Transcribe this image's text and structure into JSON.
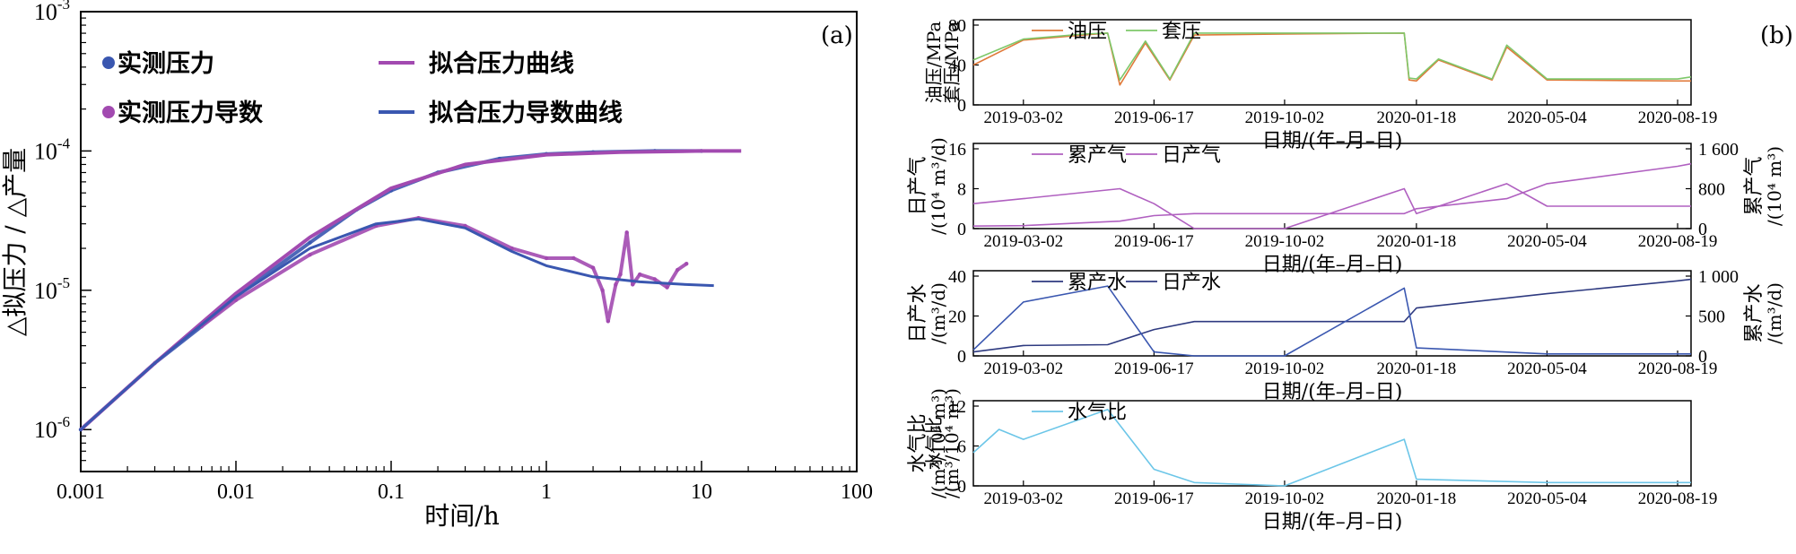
{
  "panel_a": {
    "label": "(a)",
    "xlabel": "时间/h",
    "ylabel": "△拟压力 / △产量",
    "x_ticks": [
      "0.001",
      "0.01",
      "0.1",
      "1",
      "10",
      "100"
    ],
    "y_ticks": [
      {
        "base": "10",
        "exp": "-6"
      },
      {
        "base": "10",
        "exp": "-5"
      },
      {
        "base": "10",
        "exp": "-4"
      },
      {
        "base": "10",
        "exp": "-3"
      }
    ],
    "legend": {
      "measured_pressure": "实测压力",
      "measured_derivative": "实测压力导数",
      "fit_pressure": "拟合压力曲线",
      "fit_derivative": "拟合压力导数曲线"
    }
  },
  "panel_b": {
    "label": "(b)",
    "date_ticks": [
      "2019-03-02",
      "2019-06-17",
      "2019-10-02",
      "2020-01-18",
      "2020-05-04",
      "2020-08-19"
    ],
    "xlabel": "日期/(年–月–日)",
    "sub1": {
      "ylabel1": "油压/MPa",
      "ylabel2": "套压/MPa",
      "ticks": [
        "0",
        "40",
        "80"
      ],
      "legend": [
        "油压",
        "套压"
      ]
    },
    "sub2": {
      "ylabel_left1": "日产气",
      "ylabel_left2": "/(10⁴ m³/d)",
      "ylabel_right1": "累产气",
      "ylabel_right2": "/(10⁴ m³)",
      "ticks_left": [
        "0",
        "8",
        "16"
      ],
      "ticks_right": [
        "0",
        "800",
        "1 600"
      ],
      "legend": [
        "累产气",
        "日产气"
      ]
    },
    "sub3": {
      "ylabel_left1": "日产水",
      "ylabel_left2": "/(m³/d)",
      "ylabel_right1": "累产水",
      "ylabel_right2": "/(m³/d)",
      "ticks_left": [
        "0",
        "20",
        "40"
      ],
      "ticks_right": [
        "0",
        "500",
        "1 000"
      ],
      "legend": [
        "累产水",
        "日产水"
      ]
    },
    "sub4": {
      "ylabel1": "水气比",
      "ylabel2": "/(m³/10⁴ m³)",
      "ticks": [
        "0",
        "6",
        "12"
      ],
      "legend": [
        "水气比"
      ]
    }
  },
  "colors": {
    "purple": "#a24ab0",
    "blue": "#3a57b0",
    "orange": "#e07a3a",
    "green": "#7ec86a",
    "violet": "#b060c0",
    "navy": "#2e3a80",
    "lightblue": "#6cc6e8"
  },
  "chart_data": [
    {
      "type": "scatter",
      "x_scale": "log",
      "y_scale": "log",
      "xlim": [
        0.001,
        100
      ],
      "ylim": [
        5e-07,
        0.001
      ],
      "series": [
        {
          "name": "实测压力",
          "x": [
            0.001,
            0.003,
            0.006,
            0.01,
            0.03,
            0.06,
            0.1,
            0.2,
            0.5,
            1,
            2,
            5,
            10
          ],
          "y": [
            1e-06,
            3e-06,
            5.5e-06,
            9e-06,
            2.2e-05,
            3.8e-05,
            5.2e-05,
            7e-05,
            8.8e-05,
            9.5e-05,
            9.8e-05,
            0.0001,
            0.0001
          ]
        },
        {
          "name": "实测压力导数",
          "x": [
            0.006,
            0.01,
            0.03,
            0.08,
            0.15,
            0.3,
            0.6,
            1,
            1.5,
            2,
            2.3,
            2.5,
            2.8,
            3.0,
            3.3,
            3.6,
            4.0,
            5.0,
            6.0,
            7.0,
            8.0
          ],
          "y": [
            5.5e-06,
            8.5e-06,
            1.8e-05,
            2.9e-05,
            3.3e-05,
            2.9e-05,
            2e-05,
            1.7e-05,
            1.7e-05,
            1.45e-05,
            1e-05,
            6e-06,
            1.1e-05,
            1.3e-05,
            2.6e-05,
            1.1e-05,
            1.3e-05,
            1.2e-05,
            1.05e-05,
            1.4e-05,
            1.55e-05
          ]
        },
        {
          "name": "拟合压力曲线",
          "x": [
            0.001,
            0.003,
            0.01,
            0.03,
            0.1,
            0.3,
            1,
            3,
            10,
            18
          ],
          "y": [
            1e-06,
            3e-06,
            9.5e-06,
            2.4e-05,
            5.4e-05,
            8e-05,
            9.4e-05,
            9.8e-05,
            0.0001,
            0.0001
          ]
        },
        {
          "name": "拟合压力导数曲线",
          "x": [
            0.001,
            0.003,
            0.01,
            0.03,
            0.08,
            0.15,
            0.3,
            0.6,
            1,
            2,
            4,
            8,
            12
          ],
          "y": [
            1e-06,
            3e-06,
            9e-06,
            2e-05,
            3e-05,
            3.25e-05,
            2.8e-05,
            1.9e-05,
            1.5e-05,
            1.25e-05,
            1.15e-05,
            1.1e-05,
            1.08e-05
          ]
        }
      ]
    },
    {
      "type": "line",
      "x": [
        "2019-01-20",
        "2019-03-02",
        "2019-04-20",
        "2019-05-10",
        "2019-05-20",
        "2019-06-10",
        "2019-06-30",
        "2019-07-20",
        "2019-10-02",
        "2020-01-08",
        "2020-01-12",
        "2020-01-18",
        "2020-02-05",
        "2020-03-20",
        "2020-04-01",
        "2020-05-04",
        "2020-08-19",
        "2020-08-30"
      ],
      "series": [
        {
          "name": "油压",
          "values": [
            40,
            65,
            70,
            72,
            20,
            62,
            25,
            70,
            71,
            72,
            25,
            24,
            45,
            25,
            58,
            25,
            24,
            24
          ]
        },
        {
          "name": "套压",
          "values": [
            45,
            66,
            71,
            72,
            25,
            64,
            26,
            72,
            72,
            72,
            27,
            26,
            46,
            26,
            60,
            26,
            26,
            28
          ]
        }
      ],
      "ylim": [
        0,
        80
      ]
    },
    {
      "type": "line",
      "x": [
        "2019-01-20",
        "2019-03-02",
        "2019-05-20",
        "2019-06-17",
        "2019-07-20",
        "2019-10-02",
        "2020-01-08",
        "2020-01-18",
        "2020-04-01",
        "2020-05-04",
        "2020-08-19",
        "2020-08-30"
      ],
      "series": [
        {
          "name": "累产气",
          "values": [
            50,
            60,
            150,
            260,
            300,
            300,
            300,
            400,
            600,
            900,
            1250,
            1300
          ]
        },
        {
          "name": "日产气",
          "values": [
            5,
            6,
            8,
            5,
            0,
            0,
            8,
            3,
            9,
            4.5,
            4.5,
            4.5
          ]
        }
      ]
    },
    {
      "type": "line",
      "x": [
        "2019-01-20",
        "2019-03-02",
        "2019-05-10",
        "2019-06-17",
        "2019-07-20",
        "2019-10-02",
        "2020-01-08",
        "2020-01-18",
        "2020-05-04",
        "2020-08-19",
        "2020-08-30"
      ],
      "series": [
        {
          "name": "累产水",
          "values": [
            50,
            130,
            140,
            330,
            430,
            430,
            430,
            600,
            780,
            940,
            960
          ]
        },
        {
          "name": "日产水",
          "values": [
            3,
            27,
            35,
            2,
            0,
            0,
            34,
            4,
            1,
            1,
            1
          ]
        }
      ]
    },
    {
      "type": "line",
      "x": [
        "2019-01-20",
        "2019-02-10",
        "2019-03-02",
        "2019-05-10",
        "2019-06-17",
        "2019-07-20",
        "2019-10-02",
        "2020-01-08",
        "2020-01-18",
        "2020-05-04",
        "2020-08-19",
        "2020-08-30"
      ],
      "series": [
        {
          "name": "水气比",
          "values": [
            5,
            8.5,
            7,
            11.5,
            2.5,
            0.5,
            0,
            7,
            1,
            0.5,
            0.5,
            0.5
          ]
        }
      ],
      "ylim": [
        0,
        12
      ]
    }
  ]
}
